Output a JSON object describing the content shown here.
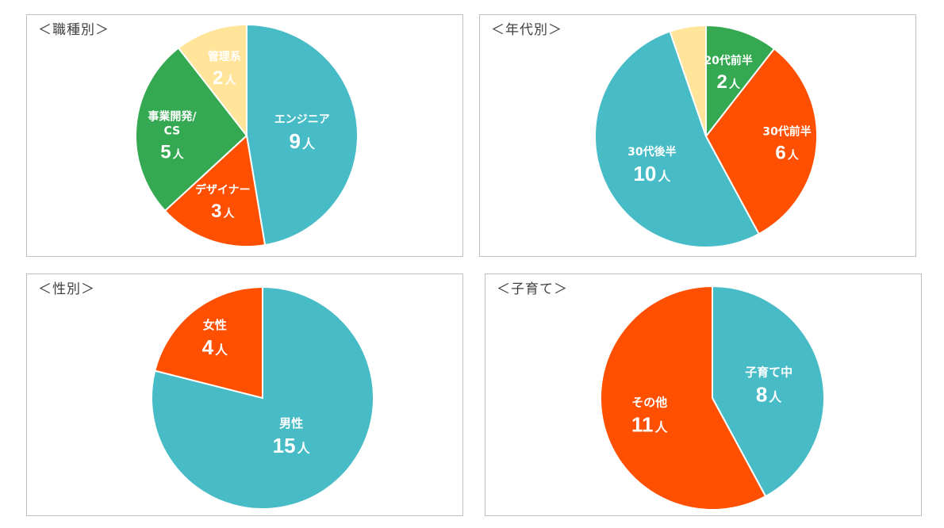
{
  "chart_data": [
    {
      "type": "pie",
      "title": "＜職種別＞",
      "categories": [
        "エンジニア",
        "デザイナー",
        "事業開発/CS",
        "管理系"
      ],
      "values": [
        9,
        3,
        5,
        2
      ],
      "unit": "人",
      "colors": [
        "#47BCC6",
        "#FF4F00",
        "#35A852",
        "#FFE49A"
      ]
    },
    {
      "type": "pie",
      "title": "＜年代別＞",
      "categories": [
        "20代前半",
        "30代前半",
        "30代後半",
        ""
      ],
      "values": [
        2,
        6,
        10,
        1
      ],
      "unit": "人",
      "colors": [
        "#35A852",
        "#FF4F00",
        "#47BCC6",
        "#FFE49A"
      ]
    },
    {
      "type": "pie",
      "title": "＜性別＞",
      "categories": [
        "男性",
        "女性"
      ],
      "values": [
        15,
        4
      ],
      "unit": "人",
      "colors": [
        "#47BCC6",
        "#FF4F00"
      ]
    },
    {
      "type": "pie",
      "title": "＜子育て＞",
      "categories": [
        "子育て中",
        "その他"
      ],
      "values": [
        8,
        11
      ],
      "unit": "人",
      "colors": [
        "#47BCC6",
        "#FF4F00"
      ]
    }
  ]
}
